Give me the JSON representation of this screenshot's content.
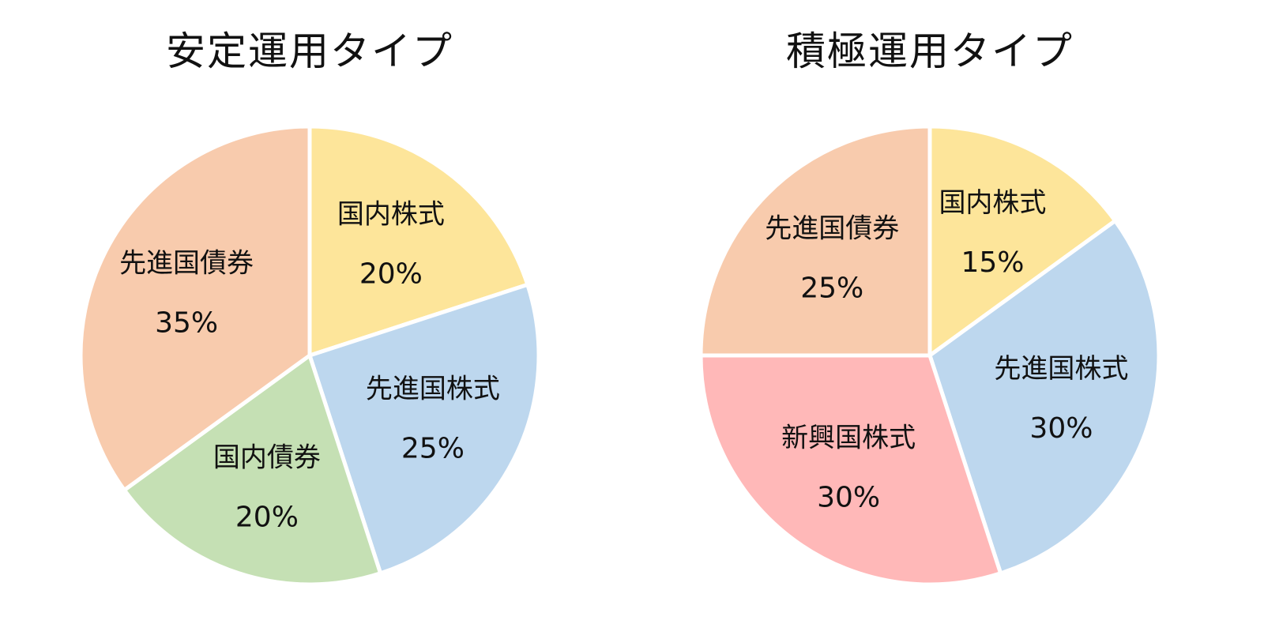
{
  "chart_data": [
    {
      "type": "pie",
      "title": "安定運用タイプ",
      "slices": [
        {
          "label": "国内株式",
          "value": 20,
          "value_label": "20%",
          "color": "#FDE59A"
        },
        {
          "label": "先進国株式",
          "value": 25,
          "value_label": "25%",
          "color": "#BDD7EE"
        },
        {
          "label": "国内債券",
          "value": 20,
          "value_label": "20%",
          "color": "#C5E0B4"
        },
        {
          "label": "先進国債券",
          "value": 35,
          "value_label": "35%",
          "color": "#F8CBAD"
        }
      ]
    },
    {
      "type": "pie",
      "title": "積極運用タイプ",
      "slices": [
        {
          "label": "国内株式",
          "value": 15,
          "value_label": "15%",
          "color": "#FDE59A"
        },
        {
          "label": "先進国株式",
          "value": 30,
          "value_label": "30%",
          "color": "#BDD7EE"
        },
        {
          "label": "新興国株式",
          "value": 30,
          "value_label": "30%",
          "color": "#FFB8B8"
        },
        {
          "label": "先進国債券",
          "value": 25,
          "value_label": "25%",
          "color": "#F8CBAD"
        }
      ]
    }
  ]
}
